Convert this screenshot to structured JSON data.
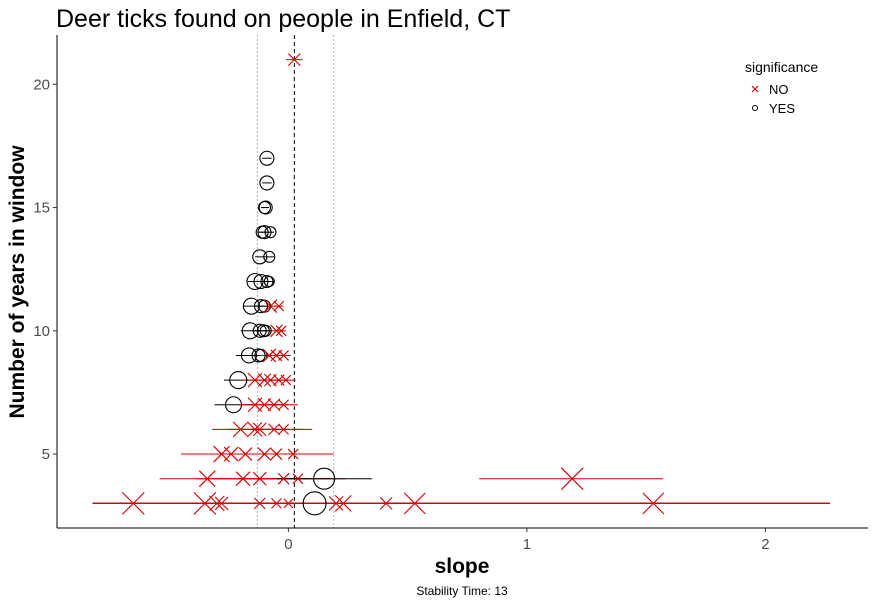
{
  "chart_data": {
    "type": "scatter",
    "title": "Deer ticks found on people in Enfield, CT",
    "xlabel": "slope",
    "ylabel": "Number of years in window",
    "caption": "Stability Time: 13",
    "xlim": [
      -0.97,
      2.43
    ],
    "ylim": [
      2.0,
      22.0
    ],
    "x_ticks": [
      0,
      1,
      2
    ],
    "y_ticks": [
      5,
      10,
      15,
      20
    ],
    "grid": false,
    "reference_lines": {
      "mean_slope": 0.025,
      "lower_bound": -0.13,
      "upper_bound": 0.19
    },
    "legend": {
      "title": "significance",
      "position": "top-right",
      "entries": [
        {
          "label": "NO",
          "shape": "x",
          "color": "#d40000"
        },
        {
          "label": "YES",
          "shape": "circle",
          "color": "#000000"
        }
      ]
    },
    "points": [
      {
        "y": 21,
        "x": 0.025,
        "lo": -0.01,
        "hi": 0.06,
        "sig": "NO",
        "size": 0.4
      },
      {
        "y": 17,
        "x": -0.09,
        "lo": -0.11,
        "hi": -0.07,
        "sig": "YES",
        "size": 0.5
      },
      {
        "y": 16,
        "x": -0.09,
        "lo": -0.11,
        "hi": -0.07,
        "sig": "YES",
        "size": 0.5
      },
      {
        "y": 15,
        "x": -0.095,
        "lo": -0.11,
        "hi": -0.08,
        "sig": "YES",
        "size": 0.45
      },
      {
        "y": 15,
        "x": -0.1,
        "lo": -0.115,
        "hi": -0.085,
        "sig": "YES",
        "size": 0.4
      },
      {
        "y": 14,
        "x": -0.1,
        "lo": -0.12,
        "hi": -0.08,
        "sig": "YES",
        "size": 0.45
      },
      {
        "y": 14,
        "x": -0.11,
        "lo": -0.13,
        "hi": -0.09,
        "sig": "YES",
        "size": 0.4
      },
      {
        "y": 14,
        "x": -0.075,
        "lo": -0.09,
        "hi": -0.06,
        "sig": "YES",
        "size": 0.35
      },
      {
        "y": 13,
        "x": -0.12,
        "lo": -0.14,
        "hi": -0.1,
        "sig": "YES",
        "size": 0.5
      },
      {
        "y": 13,
        "x": -0.08,
        "lo": -0.1,
        "hi": -0.06,
        "sig": "YES",
        "size": 0.35
      },
      {
        "y": 12,
        "x": -0.14,
        "lo": -0.17,
        "hi": -0.11,
        "sig": "YES",
        "size": 0.6
      },
      {
        "y": 12,
        "x": -0.115,
        "lo": -0.14,
        "hi": -0.09,
        "sig": "YES",
        "size": 0.5
      },
      {
        "y": 12,
        "x": -0.09,
        "lo": -0.11,
        "hi": -0.07,
        "sig": "YES",
        "size": 0.4
      },
      {
        "y": 12,
        "x": -0.08,
        "lo": -0.1,
        "hi": -0.06,
        "sig": "YES",
        "size": 0.3
      },
      {
        "y": 11,
        "x": -0.155,
        "lo": -0.19,
        "hi": -0.12,
        "sig": "YES",
        "size": 0.6
      },
      {
        "y": 11,
        "x": -0.115,
        "lo": -0.14,
        "hi": -0.09,
        "sig": "YES",
        "size": 0.45
      },
      {
        "y": 11,
        "x": -0.1,
        "lo": -0.12,
        "hi": -0.08,
        "sig": "YES",
        "size": 0.4
      },
      {
        "y": 11,
        "x": -0.075,
        "lo": -0.1,
        "hi": -0.05,
        "sig": "NO",
        "size": 0.45
      },
      {
        "y": 11,
        "x": -0.04,
        "lo": -0.06,
        "hi": -0.02,
        "sig": "NO",
        "size": 0.3
      },
      {
        "y": 10,
        "x": -0.16,
        "lo": -0.2,
        "hi": -0.12,
        "sig": "YES",
        "size": 0.6
      },
      {
        "y": 10,
        "x": -0.12,
        "lo": -0.15,
        "hi": -0.09,
        "sig": "YES",
        "size": 0.45
      },
      {
        "y": 10,
        "x": -0.105,
        "lo": -0.13,
        "hi": -0.08,
        "sig": "YES",
        "size": 0.4
      },
      {
        "y": 10,
        "x": -0.095,
        "lo": -0.12,
        "hi": -0.07,
        "sig": "YES",
        "size": 0.35
      },
      {
        "y": 10,
        "x": -0.05,
        "lo": -0.08,
        "hi": -0.02,
        "sig": "NO",
        "size": 0.4
      },
      {
        "y": 10,
        "x": -0.03,
        "lo": -0.05,
        "hi": -0.01,
        "sig": "NO",
        "size": 0.3
      },
      {
        "y": 9,
        "x": -0.165,
        "lo": -0.22,
        "hi": -0.11,
        "sig": "YES",
        "size": 0.55
      },
      {
        "y": 9,
        "x": -0.125,
        "lo": -0.17,
        "hi": -0.08,
        "sig": "YES",
        "size": 0.45
      },
      {
        "y": 9,
        "x": -0.115,
        "lo": -0.15,
        "hi": -0.08,
        "sig": "YES",
        "size": 0.4
      },
      {
        "y": 9,
        "x": -0.08,
        "lo": -0.12,
        "hi": -0.04,
        "sig": "NO",
        "size": 0.45
      },
      {
        "y": 9,
        "x": -0.05,
        "lo": -0.08,
        "hi": -0.02,
        "sig": "NO",
        "size": 0.35
      },
      {
        "y": 9,
        "x": -0.02,
        "lo": -0.05,
        "hi": 0.01,
        "sig": "NO",
        "size": 0.3
      },
      {
        "y": 8,
        "x": -0.21,
        "lo": -0.27,
        "hi": -0.15,
        "sig": "YES",
        "size": 0.65
      },
      {
        "y": 8,
        "x": -0.14,
        "lo": -0.19,
        "hi": -0.09,
        "sig": "NO",
        "size": 0.5
      },
      {
        "y": 8,
        "x": -0.1,
        "lo": -0.15,
        "hi": -0.05,
        "sig": "NO",
        "size": 0.45
      },
      {
        "y": 8,
        "x": -0.075,
        "lo": -0.12,
        "hi": -0.03,
        "sig": "NO",
        "size": 0.4
      },
      {
        "y": 8,
        "x": -0.04,
        "lo": -0.08,
        "hi": 0.0,
        "sig": "NO",
        "size": 0.35
      },
      {
        "y": 8,
        "x": -0.01,
        "lo": -0.05,
        "hi": 0.03,
        "sig": "NO",
        "size": 0.3
      },
      {
        "y": 7,
        "x": -0.23,
        "lo": -0.31,
        "hi": -0.15,
        "sig": "YES",
        "size": 0.6
      },
      {
        "y": 7,
        "x": -0.14,
        "lo": -0.21,
        "hi": -0.07,
        "sig": "NO",
        "size": 0.5
      },
      {
        "y": 7,
        "x": -0.1,
        "lo": -0.17,
        "hi": -0.03,
        "sig": "NO",
        "size": 0.45
      },
      {
        "y": 7,
        "x": -0.06,
        "lo": -0.12,
        "hi": 0.0,
        "sig": "NO",
        "size": 0.4
      },
      {
        "y": 7,
        "x": -0.02,
        "lo": -0.08,
        "hi": 0.04,
        "sig": "NO",
        "size": 0.3
      },
      {
        "y": 6,
        "x": -0.2,
        "lo": -0.32,
        "hi": -0.08,
        "sig": "NO",
        "size": 0.55
      },
      {
        "y": 6,
        "x": -0.14,
        "lo": -0.26,
        "hi": -0.02,
        "sig": "NO",
        "size": 0.5
      },
      {
        "y": 6,
        "x": -0.12,
        "lo": -0.24,
        "hi": 0.0,
        "sig": "NO",
        "size": 0.45
      },
      {
        "y": 6,
        "x": -0.06,
        "lo": -0.18,
        "hi": 0.06,
        "sig": "NO",
        "size": 0.35
      },
      {
        "y": 6,
        "x": -0.02,
        "lo": -0.14,
        "hi": 0.1,
        "sig": "NO",
        "size": 0.3
      },
      {
        "y": 5,
        "x": -0.28,
        "lo": -0.45,
        "hi": -0.11,
        "sig": "NO",
        "size": 0.6
      },
      {
        "y": 5,
        "x": -0.24,
        "lo": -0.41,
        "hi": -0.07,
        "sig": "NO",
        "size": 0.5
      },
      {
        "y": 5,
        "x": -0.18,
        "lo": -0.35,
        "hi": -0.01,
        "sig": "NO",
        "size": 0.45
      },
      {
        "y": 5,
        "x": -0.1,
        "lo": -0.27,
        "hi": 0.07,
        "sig": "NO",
        "size": 0.45
      },
      {
        "y": 5,
        "x": -0.05,
        "lo": -0.22,
        "hi": 0.12,
        "sig": "NO",
        "size": 0.35
      },
      {
        "y": 5,
        "x": 0.02,
        "lo": -0.15,
        "hi": 0.19,
        "sig": "NO",
        "size": 0.3
      },
      {
        "y": 4,
        "x": -0.34,
        "lo": -0.54,
        "hi": -0.14,
        "sig": "NO",
        "size": 0.6
      },
      {
        "y": 4,
        "x": -0.19,
        "lo": -0.39,
        "hi": 0.01,
        "sig": "NO",
        "size": 0.5
      },
      {
        "y": 4,
        "x": -0.12,
        "lo": -0.32,
        "hi": 0.08,
        "sig": "NO",
        "size": 0.45
      },
      {
        "y": 4,
        "x": -0.02,
        "lo": -0.22,
        "hi": 0.18,
        "sig": "NO",
        "size": 0.35
      },
      {
        "y": 4,
        "x": 0.04,
        "lo": -0.16,
        "hi": 0.24,
        "sig": "NO",
        "size": 0.3
      },
      {
        "y": 4,
        "x": 0.15,
        "lo": -0.05,
        "hi": 0.35,
        "sig": "YES",
        "size": 0.85
      },
      {
        "y": 4,
        "x": 1.19,
        "lo": 0.8,
        "hi": 1.57,
        "sig": "NO",
        "size": 0.9
      },
      {
        "y": 3,
        "x": -0.65,
        "lo": -0.82,
        "hi": 2.27,
        "sig": "NO",
        "size": 0.9
      },
      {
        "y": 3,
        "x": -0.35,
        "lo": -0.82,
        "hi": 2.27,
        "sig": "NO",
        "size": 0.9
      },
      {
        "y": 3,
        "x": -0.3,
        "lo": -0.82,
        "hi": 2.27,
        "sig": "NO",
        "size": 0.55
      },
      {
        "y": 3,
        "x": -0.28,
        "lo": -0.82,
        "hi": 2.27,
        "sig": "NO",
        "size": 0.45
      },
      {
        "y": 3,
        "x": -0.12,
        "lo": -0.82,
        "hi": 2.27,
        "sig": "NO",
        "size": 0.35
      },
      {
        "y": 3,
        "x": -0.05,
        "lo": -0.82,
        "hi": 2.27,
        "sig": "NO",
        "size": 0.3
      },
      {
        "y": 3,
        "x": 0.0,
        "lo": -0.82,
        "hi": 2.27,
        "sig": "NO",
        "size": 0.25
      },
      {
        "y": 3,
        "x": 0.11,
        "lo": -0.82,
        "hi": 2.27,
        "sig": "YES",
        "size": 0.95
      },
      {
        "y": 3,
        "x": 0.2,
        "lo": -0.82,
        "hi": 2.27,
        "sig": "NO",
        "size": 0.5
      },
      {
        "y": 3,
        "x": 0.23,
        "lo": -0.82,
        "hi": 2.27,
        "sig": "NO",
        "size": 0.6
      },
      {
        "y": 3,
        "x": 0.41,
        "lo": -0.82,
        "hi": 2.27,
        "sig": "NO",
        "size": 0.4
      },
      {
        "y": 3,
        "x": 0.53,
        "lo": -0.82,
        "hi": 2.27,
        "sig": "NO",
        "size": 0.85
      },
      {
        "y": 3,
        "x": 1.53,
        "lo": -0.82,
        "hi": 2.27,
        "sig": "NO",
        "size": 0.85
      }
    ]
  }
}
